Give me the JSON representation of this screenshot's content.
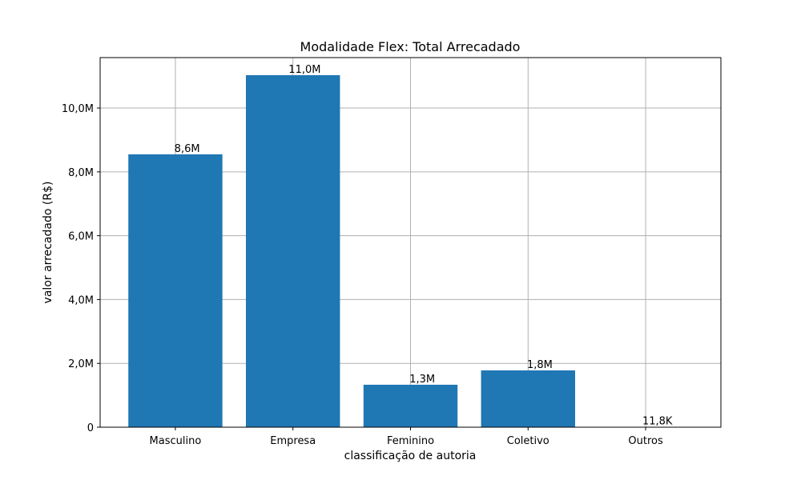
{
  "chart_data": {
    "type": "bar",
    "title": "Modalidade Flex: Total Arrecadado",
    "xlabel": "classificação de autoria",
    "ylabel": "valor arrecadado (R$)",
    "categories": [
      "Masculino",
      "Empresa",
      "Feminino",
      "Coletivo",
      "Outros"
    ],
    "values": [
      8550000,
      11030000,
      1330000,
      1780000,
      11800
    ],
    "value_labels": [
      "8,6M",
      "11,0M",
      "1,3M",
      "1,8M",
      "11,8K"
    ],
    "yticks": [
      0,
      2000000,
      4000000,
      6000000,
      8000000,
      10000000
    ],
    "ytick_labels": [
      "0",
      "2,0M",
      "4,0M",
      "6,0M",
      "8,0M",
      "10,0M"
    ],
    "ylim": [
      0,
      11580000
    ],
    "grid": true,
    "bar_color": "#1f77b4"
  }
}
